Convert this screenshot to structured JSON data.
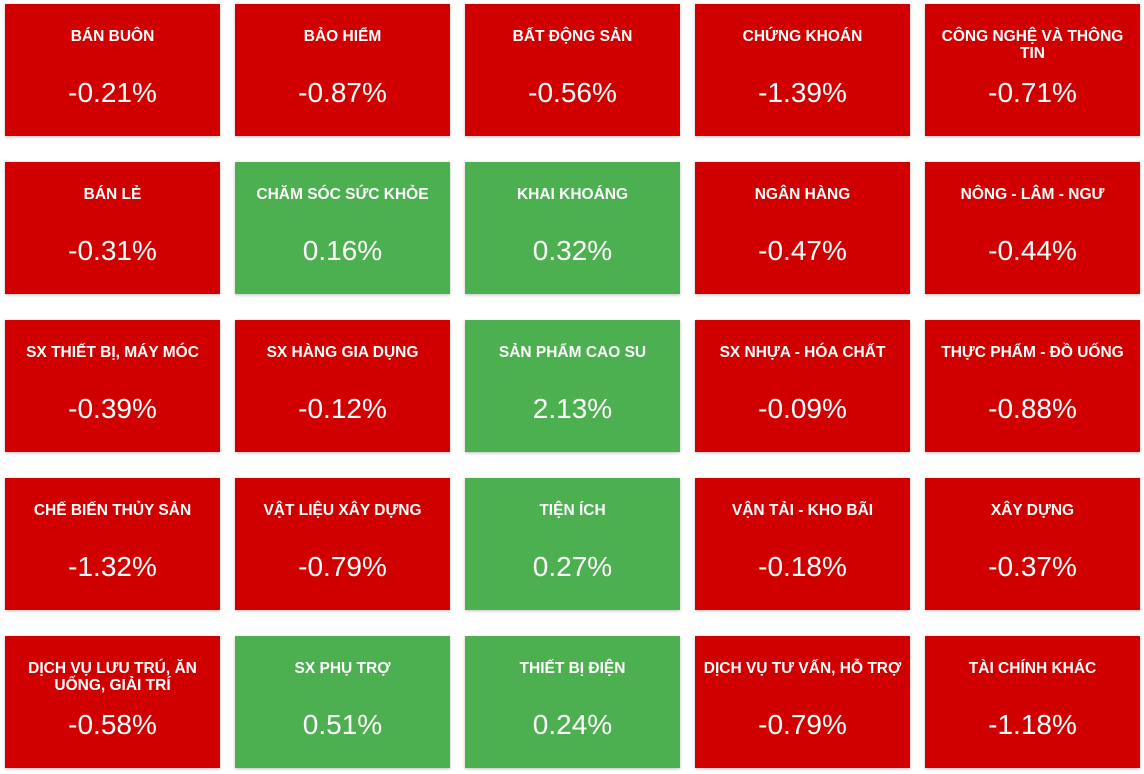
{
  "colors": {
    "down": "#d10000",
    "up": "#4caf50",
    "text": "#ffffff"
  },
  "sectors": [
    {
      "name": "BÁN BUÔN",
      "change": "-0.21%",
      "direction": "down"
    },
    {
      "name": "BẢO HIỂM",
      "change": "-0.87%",
      "direction": "down"
    },
    {
      "name": "BẤT ĐỘNG SẢN",
      "change": "-0.56%",
      "direction": "down"
    },
    {
      "name": "CHỨNG KHOÁN",
      "change": "-1.39%",
      "direction": "down"
    },
    {
      "name": "CÔNG NGHỆ VÀ THÔNG TIN",
      "change": "-0.71%",
      "direction": "down"
    },
    {
      "name": "BÁN LẺ",
      "change": "-0.31%",
      "direction": "down"
    },
    {
      "name": "CHĂM SÓC SỨC KHỎE",
      "change": "0.16%",
      "direction": "up"
    },
    {
      "name": "KHAI KHOÁNG",
      "change": "0.32%",
      "direction": "up"
    },
    {
      "name": "NGÂN HÀNG",
      "change": "-0.47%",
      "direction": "down"
    },
    {
      "name": "NÔNG - LÂM - NGƯ",
      "change": "-0.44%",
      "direction": "down"
    },
    {
      "name": "SX THIẾT BỊ, MÁY MÓC",
      "change": "-0.39%",
      "direction": "down"
    },
    {
      "name": "SX HÀNG GIA DỤNG",
      "change": "-0.12%",
      "direction": "down"
    },
    {
      "name": "SẢN PHẨM CAO SU",
      "change": "2.13%",
      "direction": "up"
    },
    {
      "name": "SX NHỰA - HÓA CHẤT",
      "change": "-0.09%",
      "direction": "down"
    },
    {
      "name": "THỰC PHẨM - ĐỒ UỐNG",
      "change": "-0.88%",
      "direction": "down"
    },
    {
      "name": "CHẾ BIẾN THỦY SẢN",
      "change": "-1.32%",
      "direction": "down"
    },
    {
      "name": "VẬT LIỆU XÂY DỰNG",
      "change": "-0.79%",
      "direction": "down"
    },
    {
      "name": "TIỆN ÍCH",
      "change": "0.27%",
      "direction": "up"
    },
    {
      "name": "VẬN TẢI - KHO BÃI",
      "change": "-0.18%",
      "direction": "down"
    },
    {
      "name": "XÂY DỰNG",
      "change": "-0.37%",
      "direction": "down"
    },
    {
      "name": "DỊCH VỤ LƯU TRÚ, ĂN UỐNG, GIẢI TRÍ",
      "change": "-0.58%",
      "direction": "down"
    },
    {
      "name": "SX PHỤ TRỢ",
      "change": "0.51%",
      "direction": "up"
    },
    {
      "name": "THIẾT BỊ ĐIỆN",
      "change": "0.24%",
      "direction": "up"
    },
    {
      "name": "DỊCH VỤ TƯ VẤN, HỖ TRỢ",
      "change": "-0.79%",
      "direction": "down"
    },
    {
      "name": "TÀI CHÍNH KHÁC",
      "change": "-1.18%",
      "direction": "down"
    }
  ]
}
